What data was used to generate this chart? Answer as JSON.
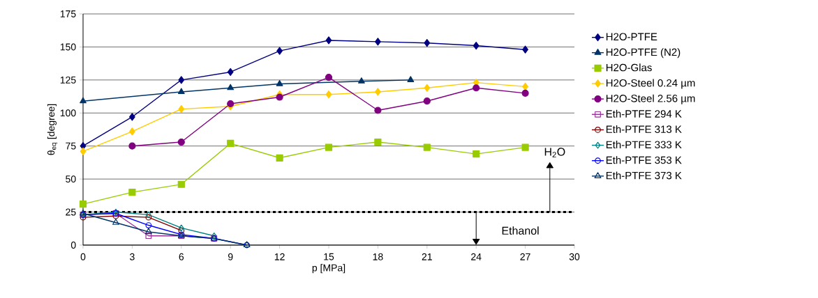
{
  "chart_data": {
    "type": "line",
    "xlabel": "p [MPa]",
    "ylabel": "θ$_{eq}$ [degree]",
    "xlim": [
      0,
      30
    ],
    "xticks": [
      0,
      3,
      6,
      9,
      12,
      15,
      18,
      21,
      24,
      27,
      30
    ],
    "ylim": [
      0,
      175
    ],
    "yticks": [
      0,
      25,
      50,
      75,
      100,
      125,
      150,
      175
    ],
    "grid": "y",
    "legend": "right",
    "series": [
      {
        "name": "H2O-PTFE",
        "color": "#000080",
        "marker": "diamond",
        "x": [
          0,
          3,
          6,
          9,
          12,
          15,
          18,
          21,
          24,
          27
        ],
        "values": [
          75,
          97,
          125,
          131,
          147,
          155,
          154,
          153,
          151,
          148
        ]
      },
      {
        "name": "H2O-PTFE (N2)",
        "color": "#003366",
        "marker": "triangle",
        "x": [
          0,
          6,
          9,
          12,
          17,
          20
        ],
        "values": [
          109,
          116,
          119,
          122,
          124,
          125
        ]
      },
      {
        "name": "H2O-Glas",
        "color": "#99cc00",
        "marker": "square",
        "x": [
          0,
          3,
          6,
          9,
          12,
          15,
          18,
          21,
          24,
          27
        ],
        "values": [
          31,
          40,
          46,
          77,
          66,
          74,
          78,
          74,
          69,
          74
        ]
      },
      {
        "name": "H2O-Steel 0.24 µm",
        "color": "#ffcc00",
        "marker": "diamond",
        "x": [
          0,
          3,
          6,
          9,
          12,
          15,
          18,
          21,
          24,
          27
        ],
        "values": [
          71,
          86,
          103,
          105,
          114,
          114,
          116,
          119,
          123,
          120
        ]
      },
      {
        "name": "H2O-Steel 2.56 µm",
        "color": "#800080",
        "marker": "circle",
        "x": [
          3,
          6,
          9,
          12,
          15,
          18,
          21,
          24,
          27
        ],
        "values": [
          75,
          78,
          107,
          112,
          127,
          102,
          109,
          119,
          115
        ]
      },
      {
        "name": "Eth-PTFE 294 K",
        "color": "#993399",
        "marker": "square",
        "x": [
          0,
          2,
          4,
          6,
          8
        ],
        "values": [
          23,
          24,
          7,
          7,
          5
        ]
      },
      {
        "name": "Eth-PTFE 313 K",
        "color": "#800000",
        "marker": "circle",
        "x": [
          0,
          2,
          4,
          6
        ],
        "values": [
          21,
          22,
          21,
          11
        ]
      },
      {
        "name": "Eth-PTFE 333 K",
        "color": "#008080",
        "marker": "diamond",
        "x": [
          0,
          2,
          4,
          6,
          8
        ],
        "values": [
          23,
          25,
          23,
          13,
          7
        ]
      },
      {
        "name": "Eth-PTFE 353 K",
        "color": "#0000ff",
        "marker": "circle",
        "x": [
          0,
          2,
          4,
          6,
          8,
          10
        ],
        "values": [
          23,
          24,
          15,
          8,
          5,
          0
        ]
      },
      {
        "name": "Eth-PTFE 373 K",
        "color": "#003366",
        "marker": "triangle",
        "x": [
          0,
          2,
          4,
          6,
          8,
          10
        ],
        "values": [
          24,
          17,
          10,
          7,
          5,
          0
        ]
      }
    ],
    "ref_lines": [
      {
        "axis": "y",
        "value": 25,
        "color": "#000000",
        "line_style": "dotted"
      }
    ],
    "annotations": [
      "H$_{2}$O",
      "Ethanol"
    ]
  }
}
